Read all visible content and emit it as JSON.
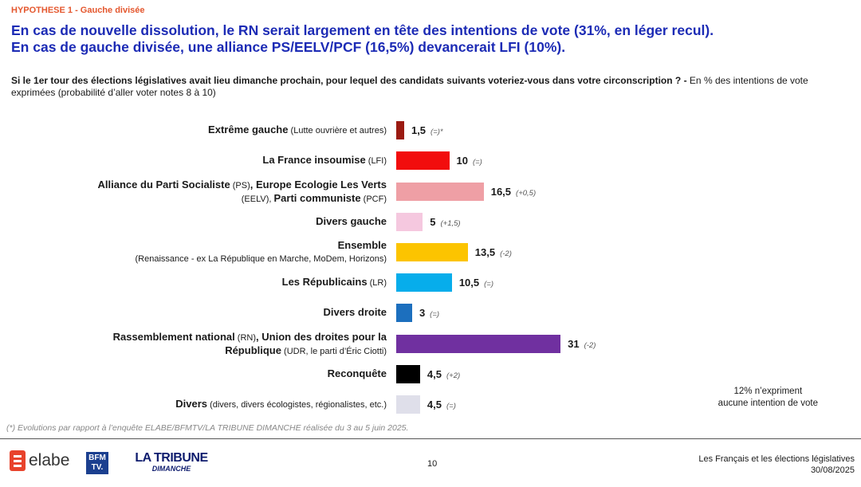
{
  "header": {
    "hypothesis": "HYPOTHESE 1 -  Gauche divisée",
    "title_line1": "En cas de nouvelle dissolution, le RN serait largement en tête des intentions de vote (31%, en léger recul).",
    "title_line2": "En cas de gauche divisée, une alliance PS/EELV/PCF (16,5%) devancerait LFI (10%).",
    "question_bold": "Si le 1er tour des élections législatives avait lieu dimanche prochain, pour lequel des candidats suivants voteriez-vous dans votre circonscription ? -",
    "question_rest": " En % des intentions de vote exprimées (probabilité d’aller voter notes 8 à 10)"
  },
  "chart_data": {
    "type": "bar",
    "orientation": "horizontal",
    "categories": [
      "Extrême gauche (Lutte ouvrière et autres)",
      "La France insoumise (LFI)",
      "Alliance du Parti Socialiste (PS), Europe Ecologie Les Verts (EELV), Parti communiste (PCF)",
      "Divers gauche",
      "Ensemble (Renaissance - ex La République en Marche, MoDem, Horizons)",
      "Les Républicains (LR)",
      "Divers droite",
      "Rassemblement national (RN), Union des droites pour la République (UDR, le parti d’Éric Ciotti)",
      "Reconquête",
      "Divers (divers, divers écologistes, régionalistes, etc.)"
    ],
    "label_parts": [
      [
        {
          "t": "Extrême gauche",
          "b": true
        },
        {
          "t": " (Lutte ouvrière et autres)",
          "b": false
        }
      ],
      [
        {
          "t": "La France insoumise",
          "b": true
        },
        {
          "t": " (LFI)",
          "b": false
        }
      ],
      [
        {
          "t": "Alliance du Parti Socialiste",
          "b": true
        },
        {
          "t": " (PS)",
          "b": false
        },
        {
          "t": ", Europe Ecologie Les Verts",
          "b": true
        },
        {
          "t": "\n",
          "b": false
        },
        {
          "t": "(EELV), ",
          "b": false
        },
        {
          "t": "Parti communiste",
          "b": true
        },
        {
          "t": " (PCF)",
          "b": false
        }
      ],
      [
        {
          "t": "Divers gauche",
          "b": true
        }
      ],
      [
        {
          "t": "Ensemble",
          "b": true
        },
        {
          "t": "\n",
          "b": false
        },
        {
          "t": "(Renaissance - ex La République en Marche, MoDem, Horizons)",
          "b": false
        }
      ],
      [
        {
          "t": "Les Républicains",
          "b": true
        },
        {
          "t": " (LR)",
          "b": false
        }
      ],
      [
        {
          "t": "Divers droite",
          "b": true
        }
      ],
      [
        {
          "t": "Rassemblement national",
          "b": true
        },
        {
          "t": " (RN)",
          "b": false
        },
        {
          "t": ", Union des droites pour la",
          "b": true
        },
        {
          "t": "\n",
          "b": false
        },
        {
          "t": "République",
          "b": true
        },
        {
          "t": " (UDR, le parti d’Éric Ciotti)",
          "b": false
        }
      ],
      [
        {
          "t": "Reconquête",
          "b": true
        }
      ],
      [
        {
          "t": "Divers",
          "b": true
        },
        {
          "t": " (divers, divers écologistes, régionalistes, etc.)",
          "b": false
        }
      ]
    ],
    "values": [
      1.5,
      10,
      16.5,
      5,
      13.5,
      10.5,
      3,
      31,
      4.5,
      4.5
    ],
    "value_labels": [
      "1,5",
      "10",
      "16,5",
      "5",
      "13,5",
      "10,5",
      "3",
      "31",
      "4,5",
      "4,5"
    ],
    "evolutions": [
      "(=)*",
      "(=)",
      "(+0,5)",
      "(+1,5)",
      "(-2)",
      "(=)",
      "(=)",
      "(-2)",
      "(+2)",
      "(=)"
    ],
    "colors": [
      "#9b1b12",
      "#f20d0d",
      "#ef9fa5",
      "#f5c8df",
      "#fcc400",
      "#07adeb",
      "#1c6fbe",
      "#7030a0",
      "#000000",
      "#dfdfea"
    ],
    "xlim": [
      0,
      31
    ]
  },
  "side_note": {
    "line1": "12% n’expriment",
    "line2": "aucune intention de vote"
  },
  "footnote": "(*) Evolutions par rapport à l’enquête ELABE/BFMTV/LA TRIBUNE DIMANCHE réalisée du 3 au 5 juin 2025.",
  "footer": {
    "logo_elabe": "elabe",
    "logo_bfm": "BFM TV.",
    "logo_tribune": "LA TRIBUNE",
    "logo_tribune_sub": "DIMANCHE",
    "page_number": "10",
    "study_title": "Les Français et les élections législatives",
    "date": "30/08/2025"
  }
}
